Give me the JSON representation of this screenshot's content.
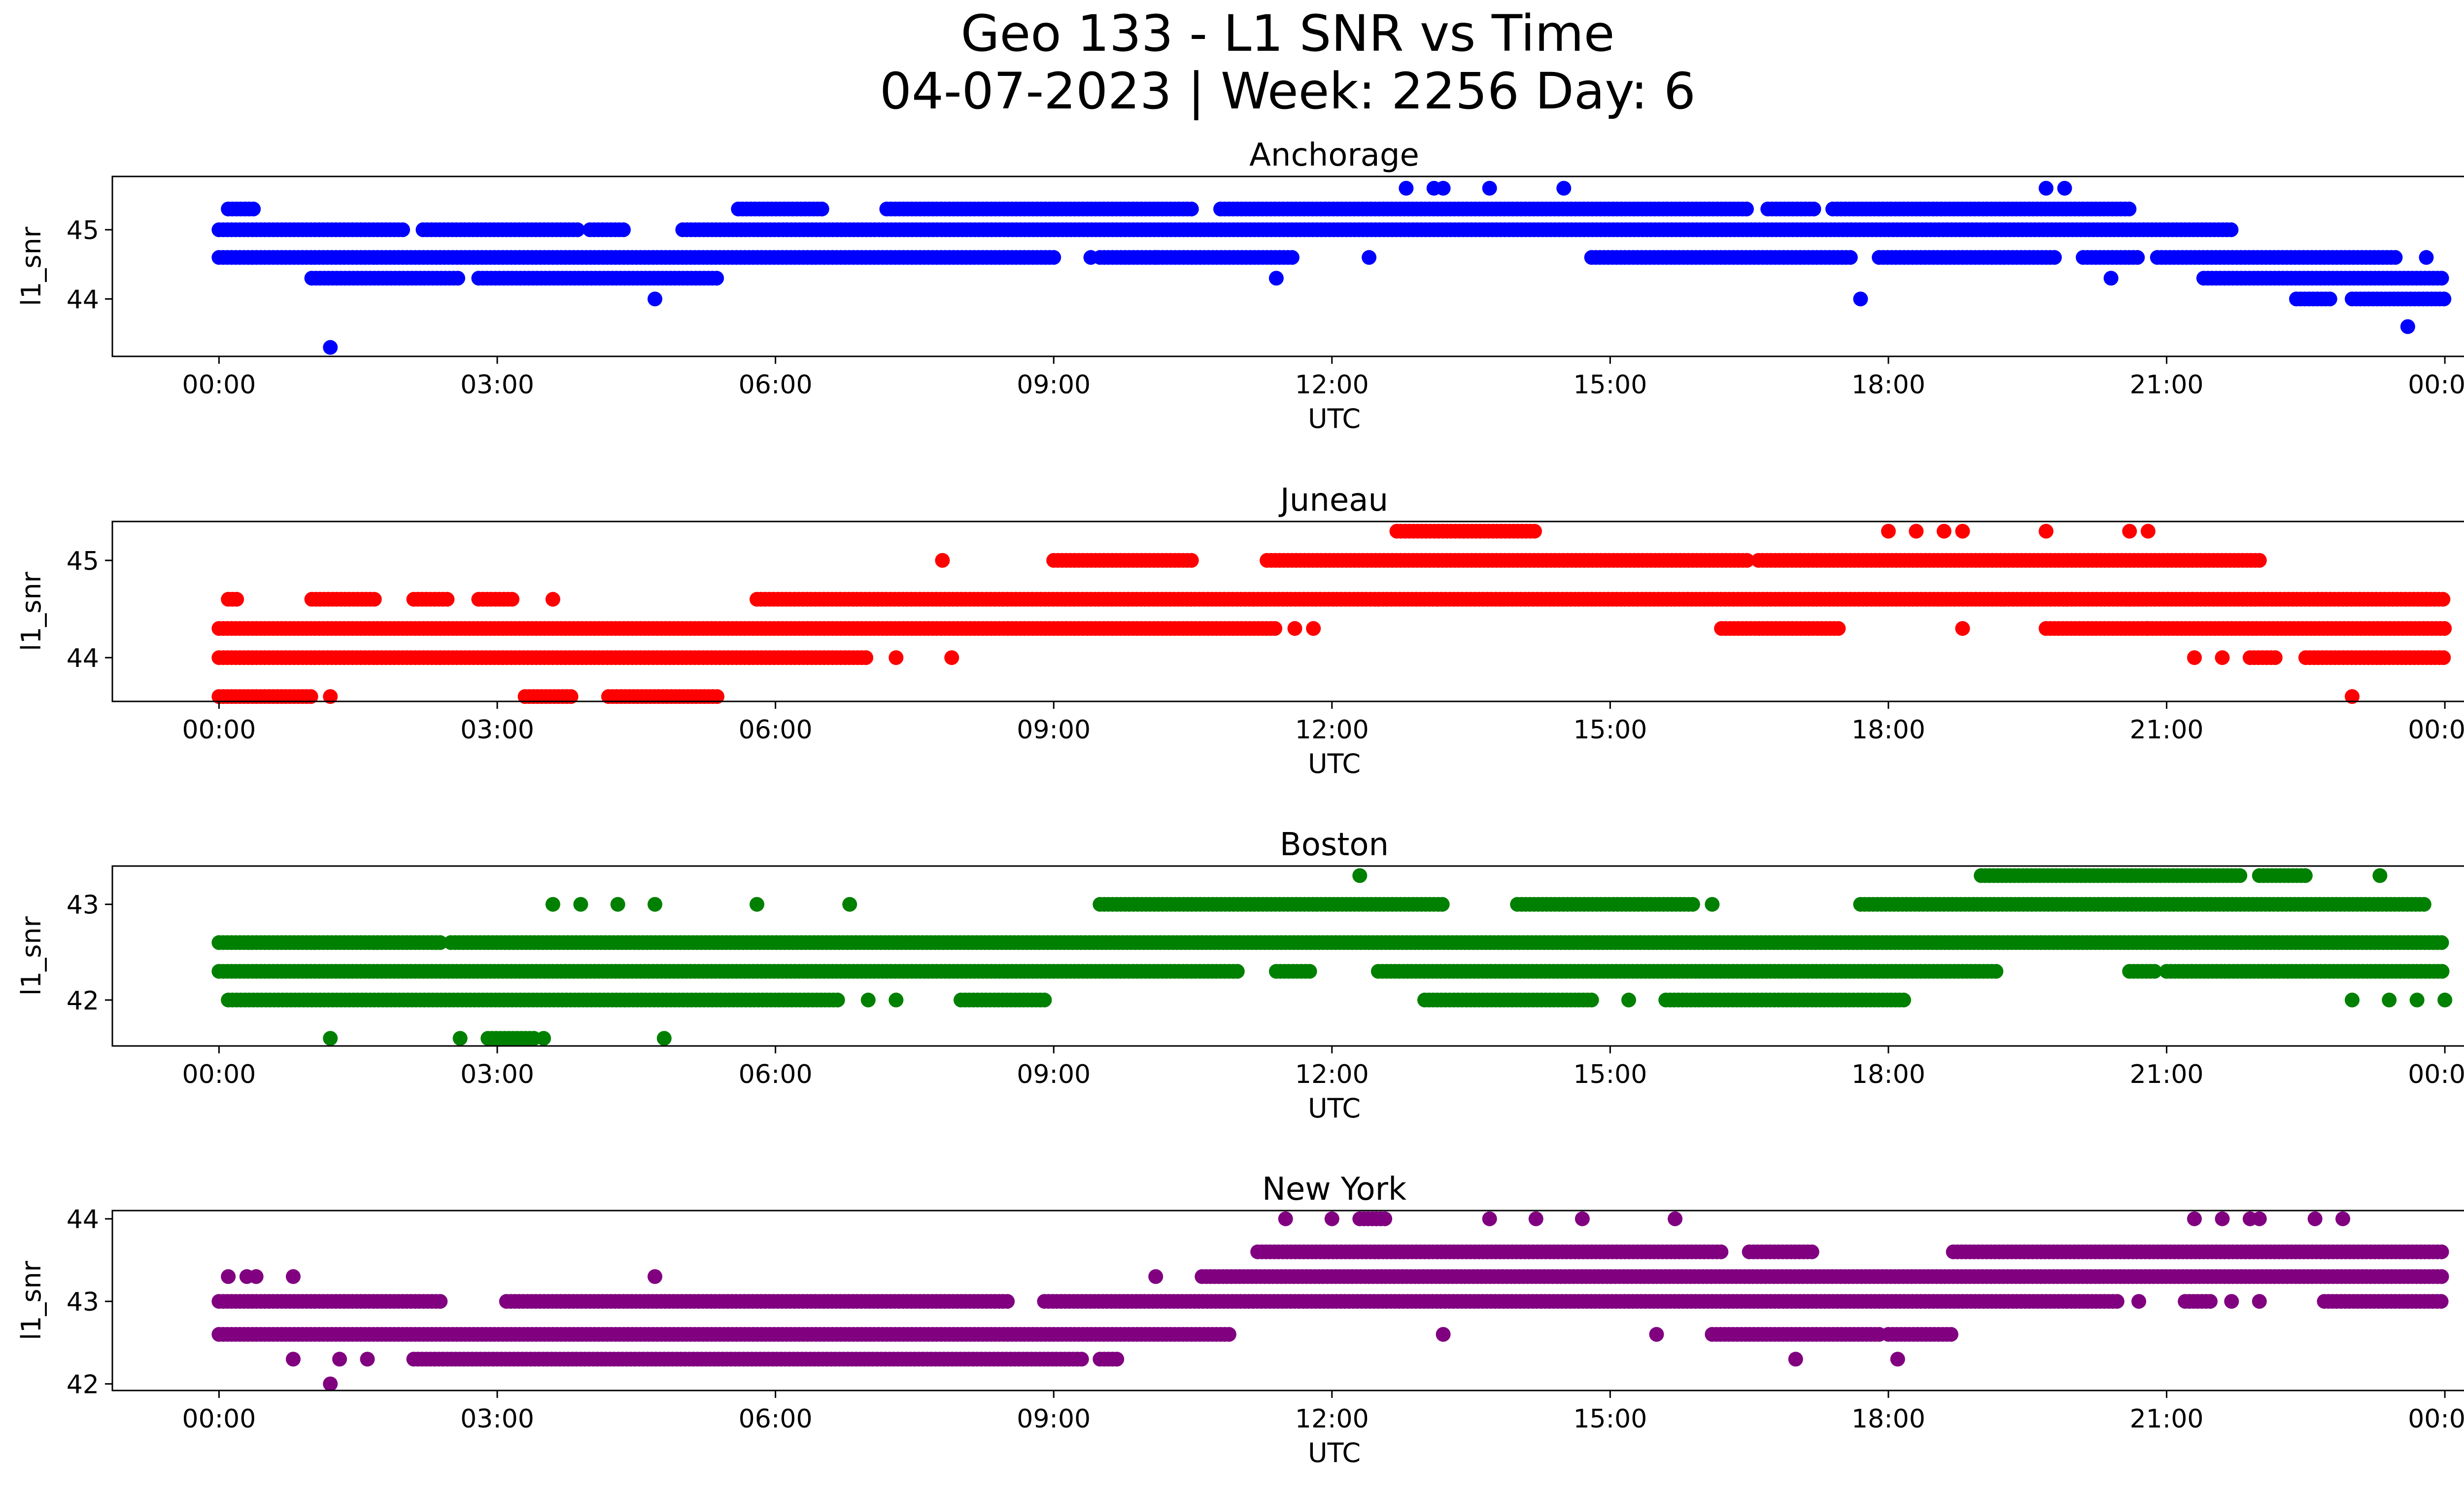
{
  "figure": {
    "title_line1": "Geo 133 - L1 SNR vs Time",
    "title_line2": "04-07-2023 | Week: 2256 Day: 6"
  },
  "chart_data": [
    {
      "type": "scatter",
      "title": "Anchorage",
      "xlabel": "UTC",
      "ylabel": "l1_snr",
      "color": "#0000ff",
      "x_ticks": [
        "00:00",
        "03:00",
        "06:00",
        "09:00",
        "12:00",
        "15:00",
        "18:00",
        "21:00",
        "00:00"
      ],
      "x_unit": "hours",
      "xlim": [
        -1.15,
        25.2
      ],
      "ylim": [
        43.17,
        45.77
      ],
      "y_ticks": [
        44,
        45
      ],
      "grid": false,
      "series": [
        {
          "levels": [
            {
              "y": 45.0,
              "ranges": [
                [
                  0.0,
                  2.0
                ],
                [
                  2.2,
                  3.9
                ],
                [
                  4.0,
                  4.4
                ],
                [
                  5.0,
                  21.7
                ]
              ]
            },
            {
              "y": 44.6,
              "ranges": [
                [
                  0.0,
                  9.0
                ],
                [
                  9.5,
                  11.6
                ],
                [
                  14.8,
                  17.6
                ],
                [
                  17.9,
                  19.8
                ],
                [
                  20.1,
                  20.7
                ],
                [
                  20.9,
                  23.5
                ]
              ]
            },
            {
              "y": 44.3,
              "ranges": [
                [
                  1.0,
                  2.6
                ],
                [
                  2.8,
                  5.4
                ],
                [
                  21.4,
                  24.0
                ]
              ]
            },
            {
              "y": 45.3,
              "ranges": [
                [
                  0.1,
                  0.4
                ],
                [
                  5.6,
                  6.5
                ],
                [
                  7.2,
                  10.5
                ],
                [
                  10.8,
                  16.5
                ],
                [
                  16.7,
                  17.2
                ],
                [
                  17.4,
                  20.6
                ]
              ]
            },
            {
              "y": 44.0,
              "ranges": [
                [
                  23.0,
                  24.0
                ],
                [
                  22.4,
                  22.8
                ]
              ]
            }
          ],
          "points": [
            {
              "x": 1.2,
              "y": 43.3
            },
            {
              "x": 4.7,
              "y": 44.0
            },
            {
              "x": 11.4,
              "y": 44.3
            },
            {
              "x": 12.8,
              "y": 45.6
            },
            {
              "x": 13.1,
              "y": 45.6
            },
            {
              "x": 13.2,
              "y": 45.6
            },
            {
              "x": 13.7,
              "y": 45.6
            },
            {
              "x": 14.5,
              "y": 45.6
            },
            {
              "x": 19.7,
              "y": 45.6
            },
            {
              "x": 19.9,
              "y": 45.6
            },
            {
              "x": 17.7,
              "y": 44.0
            },
            {
              "x": 20.4,
              "y": 44.3
            },
            {
              "x": 23.6,
              "y": 43.6
            },
            {
              "x": 12.4,
              "y": 44.6
            },
            {
              "x": 23.8,
              "y": 44.6
            },
            {
              "x": 9.4,
              "y": 44.6
            },
            {
              "x": 10.1,
              "y": 44.6
            }
          ]
        }
      ]
    },
    {
      "type": "scatter",
      "title": "Juneau",
      "xlabel": "UTC",
      "ylabel": "l1_snr",
      "color": "#ff0000",
      "x_ticks": [
        "00:00",
        "03:00",
        "06:00",
        "09:00",
        "12:00",
        "15:00",
        "18:00",
        "21:00",
        "00:00"
      ],
      "x_unit": "hours",
      "xlim": [
        -1.15,
        25.2
      ],
      "ylim": [
        43.55,
        45.4
      ],
      "y_ticks": [
        44,
        45
      ],
      "grid": false,
      "series": [
        {
          "levels": [
            {
              "y": 44.3,
              "ranges": [
                [
                  0.0,
                  11.4
                ],
                [
                  16.2,
                  17.5
                ],
                [
                  19.7,
                  20.8
                ],
                [
                  20.8,
                  24.0
                ]
              ]
            },
            {
              "y": 44.0,
              "ranges": [
                [
                  0.0,
                  7.0
                ],
                [
                  21.9,
                  22.2
                ],
                [
                  22.5,
                  24.0
                ]
              ]
            },
            {
              "y": 44.6,
              "ranges": [
                [
                  0.1,
                  0.2
                ],
                [
                  1.0,
                  1.7
                ],
                [
                  2.1,
                  2.5
                ],
                [
                  2.8,
                  3.2
                ],
                [
                  3.6,
                  3.6
                ],
                [
                  5.8,
                  24.0
                ]
              ]
            },
            {
              "y": 45.0,
              "ranges": [
                [
                  9.0,
                  10.5
                ],
                [
                  11.3,
                  16.5
                ],
                [
                  16.6,
                  22.0
                ]
              ]
            },
            {
              "y": 43.6,
              "ranges": [
                [
                  0.0,
                  1.0
                ],
                [
                  1.2,
                  1.2
                ],
                [
                  3.3,
                  3.8
                ],
                [
                  4.2,
                  5.4
                ]
              ]
            },
            {
              "y": 45.3,
              "ranges": [
                [
                  12.7,
                  14.2
                ]
              ]
            }
          ],
          "points": [
            {
              "x": 7.8,
              "y": 45.0
            },
            {
              "x": 7.9,
              "y": 44.0
            },
            {
              "x": 7.3,
              "y": 44.0
            },
            {
              "x": 11.8,
              "y": 44.3
            },
            {
              "x": 18.0,
              "y": 45.3
            },
            {
              "x": 18.3,
              "y": 45.3
            },
            {
              "x": 18.6,
              "y": 45.3
            },
            {
              "x": 18.8,
              "y": 45.3
            },
            {
              "x": 19.7,
              "y": 45.3
            },
            {
              "x": 20.6,
              "y": 45.3
            },
            {
              "x": 20.8,
              "y": 45.3
            },
            {
              "x": 18.8,
              "y": 44.3
            },
            {
              "x": 21.3,
              "y": 44.0
            },
            {
              "x": 21.6,
              "y": 44.0
            },
            {
              "x": 23.0,
              "y": 43.6
            },
            {
              "x": 23.8,
              "y": 44.6
            },
            {
              "x": 11.6,
              "y": 44.3
            }
          ]
        }
      ]
    },
    {
      "type": "scatter",
      "title": "Boston",
      "xlabel": "UTC",
      "ylabel": "l1_snr",
      "color": "#008000",
      "x_ticks": [
        "00:00",
        "03:00",
        "06:00",
        "09:00",
        "12:00",
        "15:00",
        "18:00",
        "21:00",
        "00:00"
      ],
      "x_unit": "hours",
      "xlim": [
        -1.15,
        25.2
      ],
      "ylim": [
        41.52,
        43.4
      ],
      "y_ticks": [
        42,
        43
      ],
      "grid": false,
      "series": [
        {
          "levels": [
            {
              "y": 42.6,
              "ranges": [
                [
                  0.0,
                  2.4
                ],
                [
                  2.5,
                  24.0
                ]
              ]
            },
            {
              "y": 42.3,
              "ranges": [
                [
                  0.0,
                  11.0
                ],
                [
                  11.4,
                  11.8
                ],
                [
                  12.5,
                  19.2
                ],
                [
                  20.6,
                  20.9
                ],
                [
                  21.0,
                  24.0
                ]
              ]
            },
            {
              "y": 42.0,
              "ranges": [
                [
                  0.1,
                  6.7
                ],
                [
                  8.0,
                  8.9
                ],
                [
                  13.0,
                  14.8
                ],
                [
                  15.6,
                  18.2
                ]
              ]
            },
            {
              "y": 43.0,
              "ranges": [
                [
                  9.5,
                  13.2
                ],
                [
                  14.0,
                  15.9
                ],
                [
                  17.7,
                  23.8
                ]
              ]
            },
            {
              "y": 43.3,
              "ranges": [
                [
                  19.0,
                  21.8
                ],
                [
                  22.0,
                  22.5
                ]
              ]
            },
            {
              "y": 41.6,
              "ranges": [
                [
                  2.9,
                  3.4
                ]
              ]
            }
          ],
          "points": [
            {
              "x": 1.2,
              "y": 41.6
            },
            {
              "x": 2.6,
              "y": 41.6
            },
            {
              "x": 3.5,
              "y": 41.6
            },
            {
              "x": 4.8,
              "y": 41.6
            },
            {
              "x": 3.6,
              "y": 43.0
            },
            {
              "x": 3.9,
              "y": 43.0
            },
            {
              "x": 4.3,
              "y": 43.0
            },
            {
              "x": 4.7,
              "y": 43.0
            },
            {
              "x": 5.8,
              "y": 43.0
            },
            {
              "x": 6.8,
              "y": 43.0
            },
            {
              "x": 12.3,
              "y": 43.3
            },
            {
              "x": 16.1,
              "y": 43.0
            },
            {
              "x": 15.2,
              "y": 42.0
            },
            {
              "x": 7.3,
              "y": 42.0
            },
            {
              "x": 7.0,
              "y": 42.0
            },
            {
              "x": 23.3,
              "y": 43.3
            },
            {
              "x": 23.0,
              "y": 42.0
            },
            {
              "x": 23.4,
              "y": 42.0
            },
            {
              "x": 23.7,
              "y": 42.0
            },
            {
              "x": 24.0,
              "y": 42.0
            }
          ]
        }
      ]
    },
    {
      "type": "scatter",
      "title": "New York",
      "xlabel": "UTC",
      "ylabel": "l1_snr",
      "color": "#800080",
      "x_ticks": [
        "00:00",
        "03:00",
        "06:00",
        "09:00",
        "12:00",
        "15:00",
        "18:00",
        "21:00",
        "00:00"
      ],
      "x_unit": "hours",
      "xlim": [
        -1.15,
        25.2
      ],
      "ylim": [
        41.92,
        44.1
      ],
      "y_ticks": [
        42,
        43,
        44
      ],
      "grid": false,
      "series": [
        {
          "levels": [
            {
              "y": 42.6,
              "ranges": [
                [
                  0.0,
                  10.9
                ],
                [
                  16.1,
                  17.9
                ],
                [
                  18.0,
                  18.7
                ]
              ]
            },
            {
              "y": 43.0,
              "ranges": [
                [
                  0.0,
                  2.4
                ],
                [
                  3.1,
                  8.5
                ],
                [
                  8.9,
                  20.5
                ],
                [
                  21.2,
                  21.5
                ],
                [
                  22.7,
                  24.0
                ]
              ]
            },
            {
              "y": 42.3,
              "ranges": [
                [
                  2.1,
                  9.3
                ],
                [
                  9.5,
                  9.7
                ]
              ]
            },
            {
              "y": 43.3,
              "ranges": [
                [
                  10.6,
                  24.0
                ]
              ]
            },
            {
              "y": 43.6,
              "ranges": [
                [
                  11.2,
                  16.2
                ],
                [
                  16.5,
                  17.2
                ],
                [
                  18.7,
                  24.0
                ]
              ]
            },
            {
              "y": 44.0,
              "ranges": [
                [
                  12.3,
                  12.6
                ]
              ]
            }
          ],
          "points": [
            {
              "x": 0.1,
              "y": 43.3
            },
            {
              "x": 0.3,
              "y": 43.3
            },
            {
              "x": 0.4,
              "y": 43.3
            },
            {
              "x": 0.8,
              "y": 43.3
            },
            {
              "x": 4.7,
              "y": 43.3
            },
            {
              "x": 0.8,
              "y": 42.3
            },
            {
              "x": 1.3,
              "y": 42.3
            },
            {
              "x": 1.6,
              "y": 42.3
            },
            {
              "x": 1.2,
              "y": 42.0
            },
            {
              "x": 10.1,
              "y": 43.3
            },
            {
              "x": 11.5,
              "y": 44.0
            },
            {
              "x": 12.0,
              "y": 44.0
            },
            {
              "x": 13.7,
              "y": 44.0
            },
            {
              "x": 14.2,
              "y": 44.0
            },
            {
              "x": 14.7,
              "y": 44.0
            },
            {
              "x": 15.7,
              "y": 44.0
            },
            {
              "x": 13.2,
              "y": 42.6
            },
            {
              "x": 15.5,
              "y": 42.6
            },
            {
              "x": 17.0,
              "y": 42.3
            },
            {
              "x": 18.1,
              "y": 42.3
            },
            {
              "x": 21.3,
              "y": 44.0
            },
            {
              "x": 21.6,
              "y": 44.0
            },
            {
              "x": 21.9,
              "y": 44.0
            },
            {
              "x": 22.0,
              "y": 44.0
            },
            {
              "x": 22.6,
              "y": 44.0
            },
            {
              "x": 22.9,
              "y": 44.0
            },
            {
              "x": 20.7,
              "y": 43.0
            },
            {
              "x": 21.7,
              "y": 43.0
            },
            {
              "x": 22.0,
              "y": 43.0
            }
          ]
        }
      ]
    }
  ]
}
